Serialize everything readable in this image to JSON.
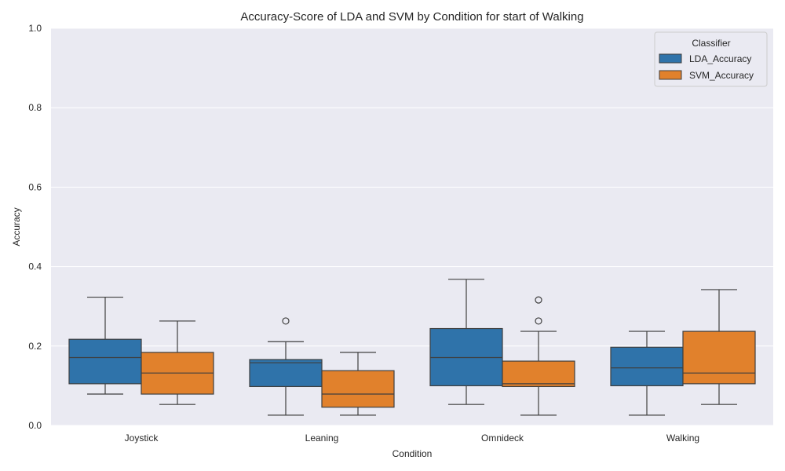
{
  "chart_data": {
    "type": "box",
    "title": "Accuracy-Score of LDA and SVM by Condition for start of Walking",
    "xlabel": "Condition",
    "ylabel": "Accuracy",
    "ylim": [
      0.0,
      1.0
    ],
    "yticks": [
      "0.0",
      "0.2",
      "0.4",
      "0.6",
      "0.8",
      "1.0"
    ],
    "grid": true,
    "categories": [
      "Joystick",
      "Leaning",
      "Omnideck",
      "Walking"
    ],
    "legend": {
      "title": "Classifier",
      "position": "top-right"
    },
    "colors": {
      "background": "#eaeaf2",
      "grid": "#ffffff",
      "edge": "#3f3f3f"
    },
    "series": [
      {
        "name": "LDA_Accuracy",
        "color": "#2f73aa",
        "boxes": [
          {
            "whislo": 0.079,
            "q1": 0.105,
            "med": 0.171,
            "q3": 0.217,
            "whishi": 0.323,
            "fliers": []
          },
          {
            "whislo": 0.026,
            "q1": 0.098,
            "med": 0.158,
            "q3": 0.166,
            "whishi": 0.211,
            "fliers": [
              0.263
            ]
          },
          {
            "whislo": 0.053,
            "q1": 0.1,
            "med": 0.171,
            "q3": 0.244,
            "whishi": 0.368,
            "fliers": []
          },
          {
            "whislo": 0.026,
            "q1": 0.1,
            "med": 0.145,
            "q3": 0.197,
            "whishi": 0.237,
            "fliers": []
          }
        ]
      },
      {
        "name": "SVM_Accuracy",
        "color": "#e1812c",
        "boxes": [
          {
            "whislo": 0.053,
            "q1": 0.079,
            "med": 0.132,
            "q3": 0.184,
            "whishi": 0.263,
            "fliers": []
          },
          {
            "whislo": 0.026,
            "q1": 0.046,
            "med": 0.079,
            "q3": 0.138,
            "whishi": 0.184,
            "fliers": []
          },
          {
            "whislo": 0.026,
            "q1": 0.098,
            "med": 0.105,
            "q3": 0.162,
            "whishi": 0.237,
            "fliers": [
              0.263,
              0.316
            ]
          },
          {
            "whislo": 0.053,
            "q1": 0.105,
            "med": 0.132,
            "q3": 0.237,
            "whishi": 0.342,
            "fliers": []
          }
        ]
      }
    ]
  }
}
